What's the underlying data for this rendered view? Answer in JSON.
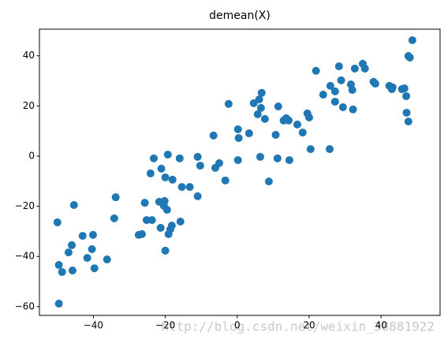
{
  "chart_data": {
    "type": "scatter",
    "title": "demean(X)",
    "series": [
      {
        "color": "#1f77b4",
        "x": [
          -50,
          -49.6,
          -48.7,
          -49.6,
          -45.4,
          -46,
          -46.9,
          -45.8,
          -43,
          -41.7,
          -40.4,
          -40.1,
          -39.7,
          -36.2,
          -33.8,
          -34.2,
          -27.4,
          -26.5,
          -25.7,
          -25.2,
          -23.7,
          -24.1,
          -23.2,
          -21.7,
          -21.3,
          -21.1,
          -20.4,
          -20.2,
          -20,
          -19.5,
          -19.3,
          -20,
          -19.1,
          -18.6,
          -18.2,
          -18,
          -16,
          -15.8,
          -15.4,
          -13.2,
          -11,
          -11,
          -10.3,
          -6.6,
          -6.1,
          -5,
          -3.3,
          -2.4,
          0.2,
          0.2,
          0.4,
          3.3,
          4.6,
          5.7,
          6.1,
          6.8,
          6.6,
          6.4,
          7.7,
          8.8,
          10.7,
          11.4,
          11.2,
          12.9,
          13.6,
          14.3,
          14.5,
          16.7,
          18.2,
          19.5,
          20,
          20.4,
          21.9,
          23.9,
          25.9,
          25.7,
          27.2,
          27.2,
          28.3,
          28.9,
          29.4,
          31.6,
          32,
          32.2,
          32.7,
          34.9,
          35.5,
          37.9,
          38.4,
          42.3,
          43,
          43.2,
          45.8,
          46.5,
          47,
          47.1,
          47.6,
          47.6,
          48,
          48.7
        ],
        "y": [
          -26.4,
          -43.4,
          -46.2,
          -58.8,
          -19.5,
          -35.5,
          -38.4,
          -45.6,
          -31.8,
          -40.6,
          -37.1,
          -31.4,
          -44.7,
          -41.2,
          -16.4,
          -24.8,
          -31.4,
          -31.1,
          -18.6,
          -25.5,
          -25.5,
          -6.9,
          -0.9,
          -18.2,
          -28.6,
          -5,
          -19.8,
          -17.9,
          -8.5,
          -21.4,
          0.6,
          -37.7,
          -31.1,
          -29.2,
          -27.7,
          -9.4,
          -0.9,
          -26.1,
          -12.3,
          -12.3,
          -0.3,
          -16,
          -3.8,
          8.2,
          -4.7,
          -2.8,
          -9.7,
          20.8,
          -1.6,
          10.7,
          7.2,
          9.1,
          21.1,
          16.7,
          22.6,
          25.2,
          19.2,
          -0.3,
          14.8,
          -10.1,
          8.5,
          19.8,
          -0.9,
          14.2,
          15.1,
          14.2,
          -1.6,
          12.6,
          9.4,
          17,
          15.4,
          2.8,
          34,
          24.5,
          28,
          2.8,
          21.7,
          25.8,
          35.8,
          30.2,
          19.5,
          28.6,
          26.4,
          18.6,
          34.9,
          36.8,
          34.9,
          29.6,
          28.9,
          28,
          26.7,
          27.4,
          26.7,
          27,
          23.9,
          17.3,
          13.8,
          39.9,
          39.3,
          46.2
        ]
      }
    ],
    "xlim": [
      -55,
      56.4
    ],
    "ylim": [
      -63.5,
      50.6
    ],
    "xticks": [
      {
        "value": -40,
        "label": "−40"
      },
      {
        "value": -20,
        "label": "−20"
      },
      0,
      20,
      40
    ],
    "yticks": [
      {
        "value": -60,
        "label": "−60"
      },
      {
        "value": -40,
        "label": "−40"
      },
      {
        "value": -20,
        "label": "−20"
      },
      0,
      20,
      40
    ],
    "watermark": "http://blog.csdn.net/weixin_38881922"
  }
}
